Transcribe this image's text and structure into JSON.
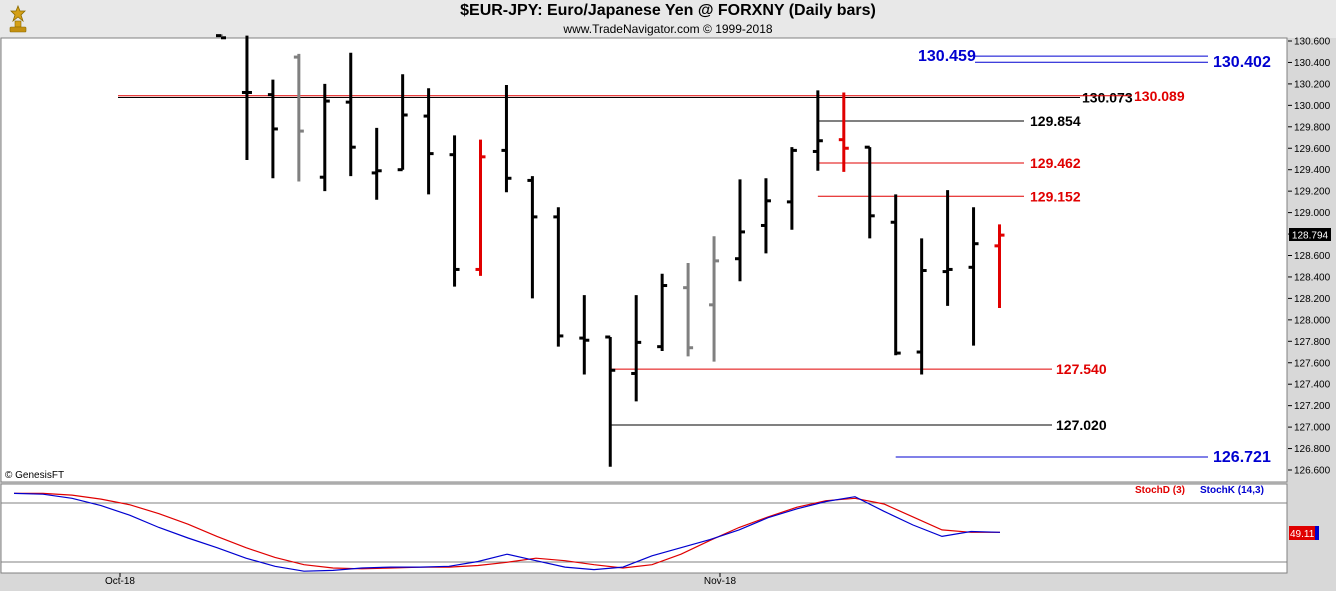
{
  "header": {
    "title": "$EUR-JPY:  Euro/Japanese Yen @ FORXNY  (Daily bars)",
    "subtitle": "www.TradeNavigator.com © 1999-2018",
    "logo_icon": "gold-trophy-icon"
  },
  "footer": {
    "copyright": "© GenesisFT"
  },
  "chart_data": [
    {
      "type": "ohlc",
      "yaxis": {
        "range": [
          126.5,
          130.65
        ],
        "ticks": [
          "130.600",
          "130.400",
          "130.200",
          "130.000",
          "129.800",
          "129.600",
          "129.400",
          "129.200",
          "129.000",
          "128.800",
          "128.600",
          "128.400",
          "128.200",
          "128.000",
          "127.800",
          "127.600",
          "127.400",
          "127.200",
          "127.000",
          "126.800",
          "126.600"
        ]
      },
      "last_price": "128.794",
      "xaxis_labels": [
        {
          "label": "Oct-18",
          "bar_index": 0
        },
        {
          "label": "Nov-18",
          "bar_index": 21
        }
      ],
      "colors": {
        "black": "#000000",
        "gray": "#808080",
        "red": "#e00000",
        "blue": "#0000d0"
      },
      "bars": [
        {
          "o": 130.7,
          "h": 130.66,
          "l": 130.66,
          "c": 130.63,
          "color": "black"
        },
        {
          "o": 130.12,
          "h": 130.65,
          "l": 129.49,
          "c": 130.12,
          "color": "black"
        },
        {
          "o": 130.1,
          "h": 130.24,
          "l": 129.32,
          "c": 129.78,
          "color": "black"
        },
        {
          "o": 130.45,
          "h": 130.48,
          "l": 129.29,
          "c": 129.76,
          "color": "gray"
        },
        {
          "o": 129.33,
          "h": 130.2,
          "l": 129.2,
          "c": 130.04,
          "color": "black"
        },
        {
          "o": 130.03,
          "h": 130.49,
          "l": 129.34,
          "c": 129.61,
          "color": "black"
        },
        {
          "o": 129.37,
          "h": 129.79,
          "l": 129.12,
          "c": 129.39,
          "color": "black"
        },
        {
          "o": 129.4,
          "h": 130.29,
          "l": 129.4,
          "c": 129.91,
          "color": "black"
        },
        {
          "o": 129.9,
          "h": 130.16,
          "l": 129.17,
          "c": 129.55,
          "color": "black"
        },
        {
          "o": 129.54,
          "h": 129.72,
          "l": 128.31,
          "c": 128.47,
          "color": "black"
        },
        {
          "o": 128.47,
          "h": 129.68,
          "l": 128.41,
          "c": 129.52,
          "color": "red"
        },
        {
          "o": 129.58,
          "h": 130.19,
          "l": 129.19,
          "c": 129.32,
          "color": "black"
        },
        {
          "o": 129.3,
          "h": 129.34,
          "l": 128.2,
          "c": 128.96,
          "color": "black"
        },
        {
          "o": 128.96,
          "h": 129.05,
          "l": 127.75,
          "c": 127.85,
          "color": "black"
        },
        {
          "o": 127.83,
          "h": 128.23,
          "l": 127.49,
          "c": 127.81,
          "color": "black"
        },
        {
          "o": 127.84,
          "h": 127.84,
          "l": 126.63,
          "c": 127.53,
          "color": "black"
        },
        {
          "o": 127.5,
          "h": 128.23,
          "l": 127.24,
          "c": 127.79,
          "color": "black"
        },
        {
          "o": 127.75,
          "h": 128.43,
          "l": 127.71,
          "c": 128.32,
          "color": "black"
        },
        {
          "o": 128.3,
          "h": 128.53,
          "l": 127.66,
          "c": 127.74,
          "color": "gray"
        },
        {
          "o": 128.14,
          "h": 128.78,
          "l": 127.61,
          "c": 128.55,
          "color": "gray"
        },
        {
          "o": 128.57,
          "h": 129.31,
          "l": 128.36,
          "c": 128.82,
          "color": "black"
        },
        {
          "o": 128.88,
          "h": 129.32,
          "l": 128.62,
          "c": 129.11,
          "color": "black"
        },
        {
          "o": 129.1,
          "h": 129.61,
          "l": 128.84,
          "c": 129.58,
          "color": "black"
        },
        {
          "o": 129.57,
          "h": 130.14,
          "l": 129.39,
          "c": 129.67,
          "color": "black"
        },
        {
          "o": 129.68,
          "h": 130.12,
          "l": 129.38,
          "c": 129.6,
          "color": "red"
        },
        {
          "o": 129.61,
          "h": 129.61,
          "l": 128.76,
          "c": 128.97,
          "color": "black"
        },
        {
          "o": 128.91,
          "h": 129.17,
          "l": 127.67,
          "c": 127.69,
          "color": "black"
        },
        {
          "o": 127.7,
          "h": 128.76,
          "l": 127.49,
          "c": 128.46,
          "color": "black"
        },
        {
          "o": 128.45,
          "h": 129.21,
          "l": 128.13,
          "c": 128.47,
          "color": "black"
        },
        {
          "o": 128.49,
          "h": 129.05,
          "l": 127.76,
          "c": 128.71,
          "color": "black"
        },
        {
          "o": 128.69,
          "h": 128.89,
          "l": 128.11,
          "c": 128.79,
          "color": "red"
        }
      ],
      "levels": [
        {
          "label": "130.459",
          "value": 130.459,
          "color": "blue",
          "from_bar": null,
          "size": "large"
        },
        {
          "label": "130.402",
          "value": 130.402,
          "color": "blue",
          "from_bar": null,
          "size": "large"
        },
        {
          "label": "130.073",
          "value": 130.073,
          "color": "black",
          "from_bar": null,
          "size": "normal"
        },
        {
          "label": "130.089",
          "value": 130.089,
          "color": "red",
          "from_bar": null,
          "size": "normal"
        },
        {
          "label": "129.854",
          "value": 129.854,
          "color": "black",
          "from_bar": 23,
          "size": "normal"
        },
        {
          "label": "129.462",
          "value": 129.462,
          "color": "red",
          "from_bar": 23,
          "size": "normal"
        },
        {
          "label": "129.152",
          "value": 129.152,
          "color": "red",
          "from_bar": 23,
          "size": "normal"
        },
        {
          "label": "127.540",
          "value": 127.54,
          "color": "red",
          "from_bar": 15,
          "size": "normal"
        },
        {
          "label": "127.020",
          "value": 127.02,
          "color": "black",
          "from_bar": 15,
          "size": "normal"
        },
        {
          "label": "126.721",
          "value": 126.721,
          "color": "blue",
          "from_bar": 26,
          "size": "large"
        }
      ]
    },
    {
      "type": "line",
      "yaxis": {
        "range": [
          0,
          100
        ]
      },
      "legend": [
        "StochD (3)",
        "StochK (14,3)"
      ],
      "last_value": "49.11",
      "series": [
        {
          "name": "StochD (3)",
          "color": "red",
          "values": [
            97,
            97,
            95,
            90,
            83,
            72,
            59,
            44,
            30,
            18,
            9,
            5,
            4,
            5,
            6,
            6,
            8,
            12,
            17,
            14,
            9,
            5,
            9,
            22,
            39,
            55,
            68,
            80,
            88,
            91,
            84,
            68,
            52,
            49,
            49
          ]
        },
        {
          "name": "StochK (14,3)",
          "color": "blue",
          "values": [
            97,
            96,
            91,
            82,
            70,
            55,
            42,
            30,
            17,
            7,
            1,
            2,
            5,
            6,
            6,
            7,
            13,
            22,
            14,
            6,
            3,
            6,
            20,
            30,
            40,
            52,
            67,
            78,
            87,
            93,
            75,
            58,
            44,
            50,
            49
          ]
        }
      ]
    }
  ]
}
